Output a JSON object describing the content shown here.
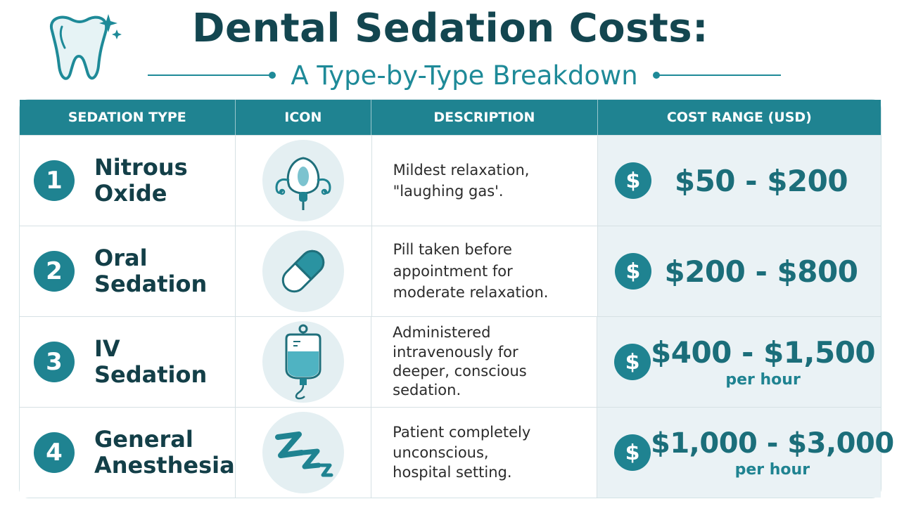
{
  "header": {
    "title": "Dental Sedation Costs:",
    "subtitle": "A Type-by-Type Breakdown"
  },
  "table": {
    "columns": [
      "SEDATION TYPE",
      "ICON",
      "DESCRIPTION",
      "COST RANGE (USD)"
    ],
    "rows": [
      {
        "number": "1",
        "type_line1": "Nitrous",
        "type_line2": "Oxide",
        "icon": "gas-mask-icon",
        "description": "Mildest relaxation, \"laughing gas'.",
        "cost": "$50 - $200",
        "note": ""
      },
      {
        "number": "2",
        "type_line1": "Oral",
        "type_line2": "Sedation",
        "icon": "pill-capsule-icon",
        "description": "Pill taken before appointment for moderate relaxation.",
        "cost": "$200 - $800",
        "note": ""
      },
      {
        "number": "3",
        "type_line1": "IV",
        "type_line2": "Sedation",
        "icon": "iv-bag-icon",
        "description": "Administered intravenously for deeper, conscious sedation.",
        "cost": "$400 - $1,500",
        "note": "per hour"
      },
      {
        "number": "4",
        "type_line1": "General",
        "type_line2": "Anesthesia",
        "icon": "sleep-zzz-icon",
        "description": "Patient completely unconscious, hospital setting.",
        "cost": "$1,000 - $3,000",
        "note": "per hour"
      }
    ],
    "currency_symbol": "$"
  },
  "colors": {
    "accent": "#1f8391",
    "title": "#134650",
    "cost": "#1b6e7a"
  }
}
